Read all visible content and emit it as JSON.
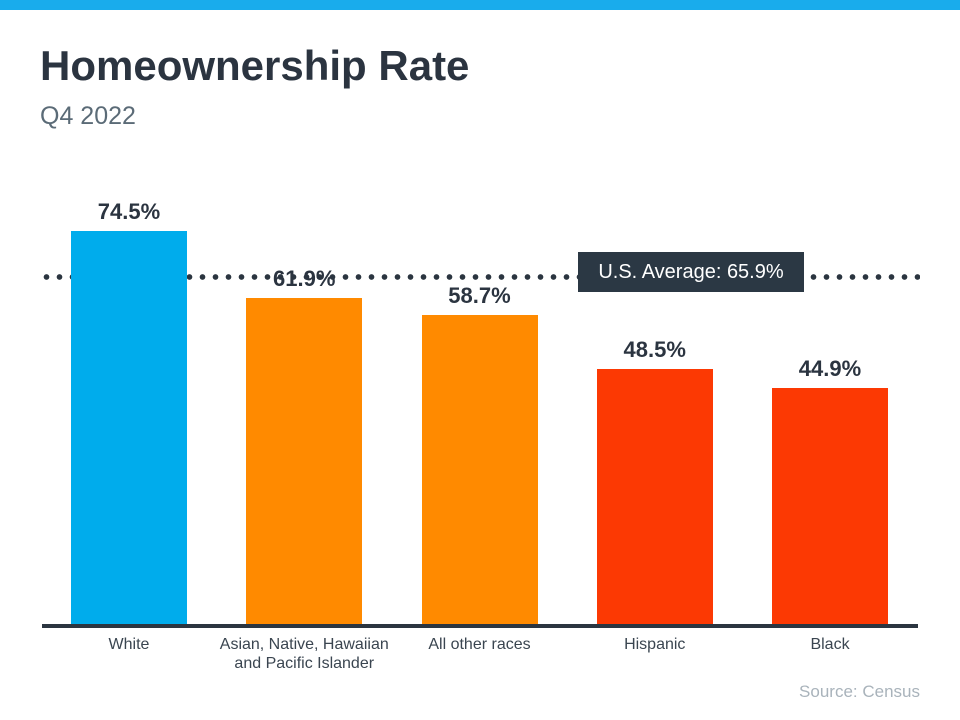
{
  "page": {
    "title": "Homeownership Rate",
    "subtitle": "Q4 2022",
    "source": "Source: Census",
    "accent_bar_color": "#19ACEC",
    "text_dark_color": "#2b3440",
    "axis_color": "#2b3540"
  },
  "average_callout": {
    "label": "U.S. Average: 65.9%",
    "value": 65.9,
    "box_color": "#2B3844",
    "text_color": "#FFFFFF",
    "line_style": "dotted",
    "dot_color": "#2b3540"
  },
  "chart_data": {
    "type": "bar",
    "title": "Homeownership Rate",
    "subtitle": "Q4 2022",
    "categories": [
      "White",
      "Asian, Native, Hawaiian and Pacific Islander",
      "All other races",
      "Hispanic",
      "Black"
    ],
    "category_lines": [
      [
        "White"
      ],
      [
        "Asian, Native, Hawaiian",
        "and Pacific Islander"
      ],
      [
        "All other races"
      ],
      [
        "Hispanic"
      ],
      [
        "Black"
      ]
    ],
    "values": [
      74.5,
      61.9,
      58.7,
      48.5,
      44.9
    ],
    "value_labels": [
      "74.5%",
      "61.9%",
      "58.7%",
      "48.5%",
      "44.9%"
    ],
    "bar_colors": [
      "#00ACEC",
      "#FF8A00",
      "#FF8A00",
      "#FC3903",
      "#FC3903"
    ],
    "reference_line": {
      "label": "U.S. Average: 65.9%",
      "value": 65.9,
      "style": "dotted"
    },
    "xlabel": "",
    "ylabel": "",
    "ylim": [
      0,
      80
    ],
    "grid": false,
    "legend": false,
    "source": "Source: Census"
  }
}
